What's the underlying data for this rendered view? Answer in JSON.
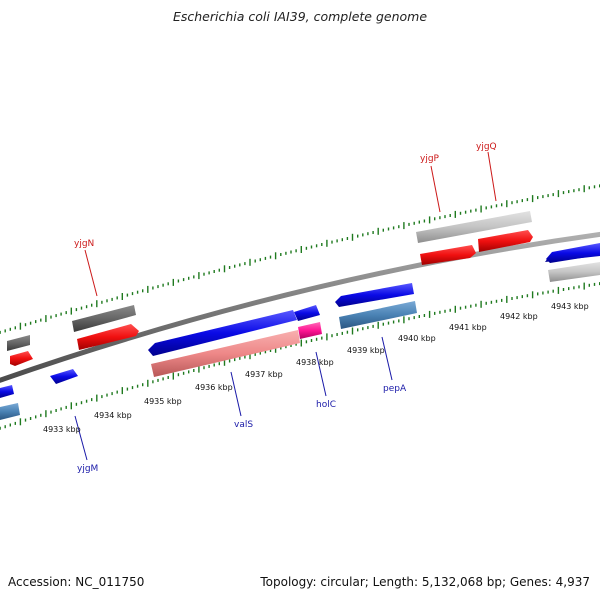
{
  "title": "Escherichia coli IAI39, complete genome",
  "footer": {
    "accession": "Accession: NC_011750",
    "stats": "Topology: circular; Length: 5,132,068 bp; Genes: 4,937"
  },
  "colors": {
    "forward_cds": "#0a0ae6",
    "reverse_cds": "#f01010",
    "gene_label_forward": "#1a1aa8",
    "gene_label_reverse": "#cc1a1a",
    "backbone": "#7a7a7a",
    "tick": "#1f7a1f",
    "gray_feature": "#6a6a6a",
    "light_gray_feature": "#c4c4c4",
    "steel_feature": "#4a82b4",
    "pink_feature": "#ee8888",
    "magenta_feature": "#ff1493"
  },
  "scale_labels": [
    "4933 kbp",
    "4934 kbp",
    "4935 kbp",
    "4936 kbp",
    "4937 kbp",
    "4938 kbp",
    "4939 kbp",
    "4940 kbp",
    "4941 kbp",
    "4942 kbp",
    "4943 kbp"
  ],
  "gene_labels": {
    "yjgN": "yjgN",
    "yjgP": "yjgP",
    "yjgQ": "yjgQ",
    "yjgM": "yjgM",
    "valS": "valS",
    "holC": "holC",
    "pepA": "pepA"
  }
}
